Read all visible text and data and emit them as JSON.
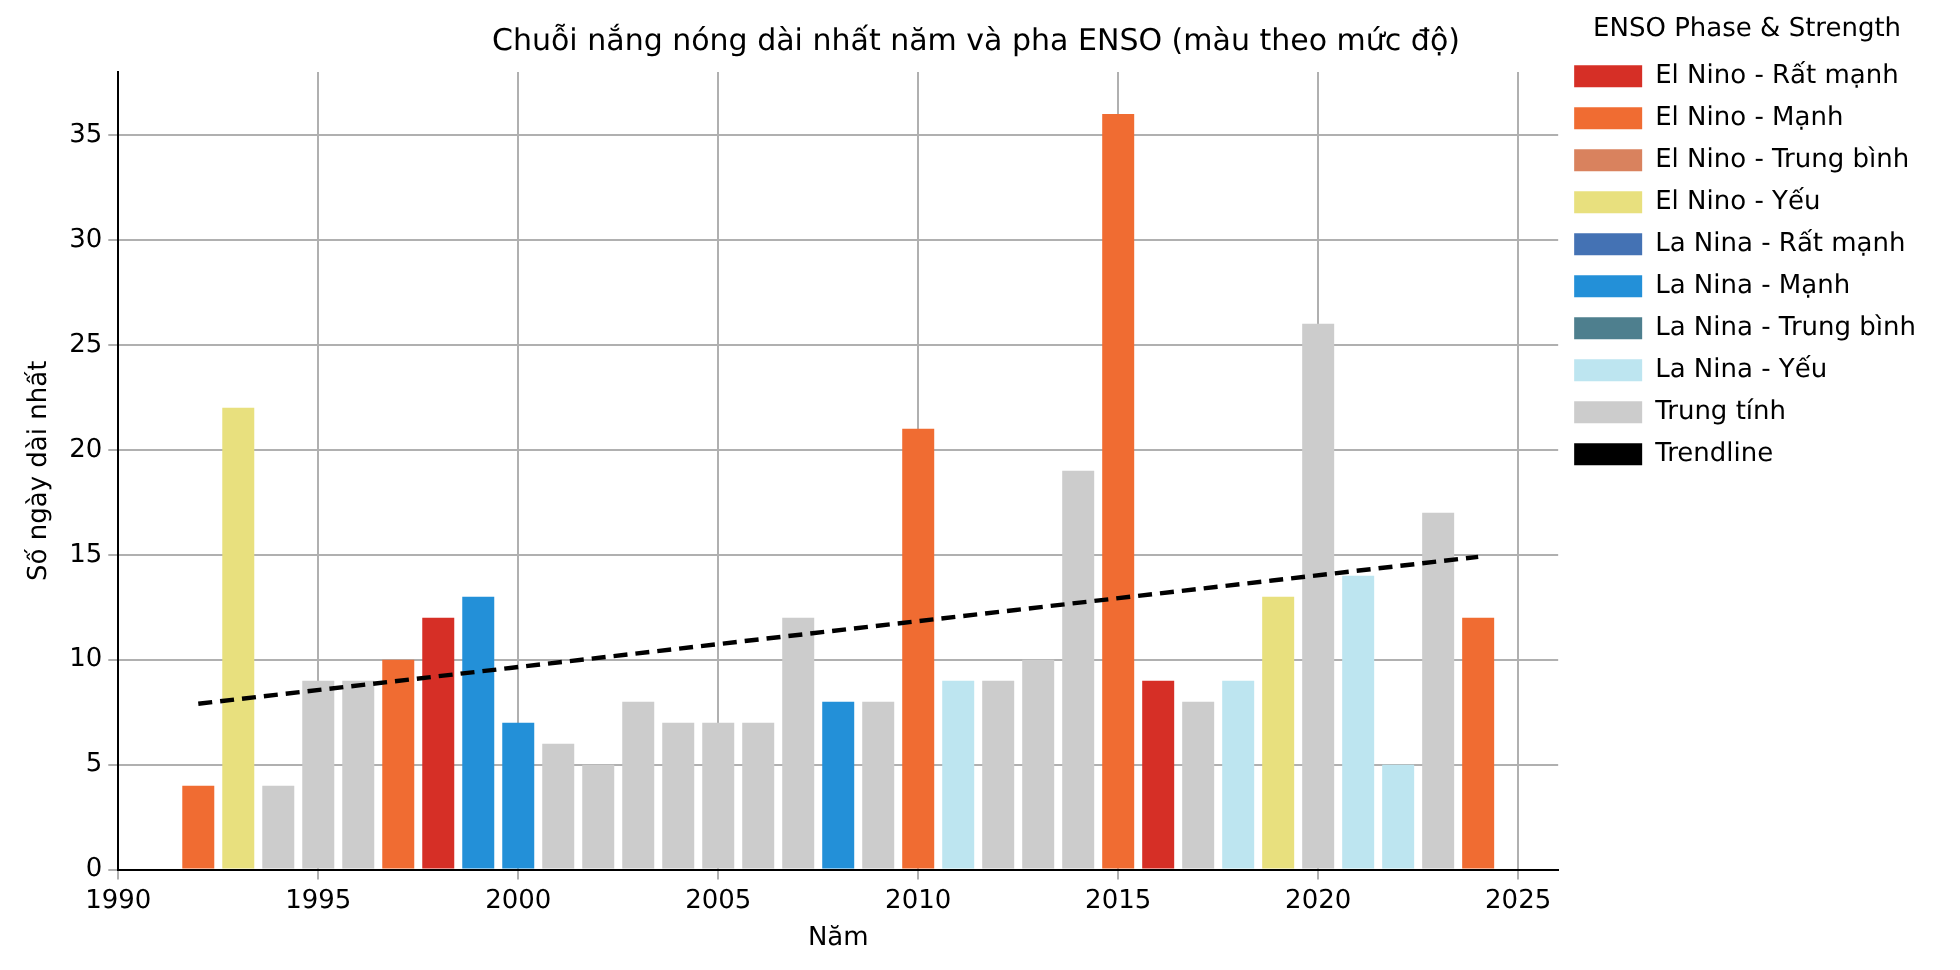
{
  "chart_data": {
    "type": "bar",
    "title": "Chuỗi nắng nóng dài nhất năm và pha ENSO (màu theo mức độ)",
    "xlabel": "Năm",
    "ylabel": "Số ngày dài nhất",
    "legend_title": "ENSO Phase & Strength",
    "legend": "right",
    "grid": true,
    "xlim": [
      1990,
      2026
    ],
    "xticks": [
      1990,
      1995,
      2000,
      2005,
      2010,
      2015,
      2020,
      2025
    ],
    "ylim": [
      0,
      38
    ],
    "yticks": [
      0,
      5,
      10,
      15,
      20,
      25,
      30,
      35
    ],
    "series": [
      {
        "name": "El Nino - Rất mạnh",
        "color": "#d62f26",
        "x": [
          1998,
          2016
        ],
        "values": [
          12,
          9
        ]
      },
      {
        "name": "El Nino - Mạnh",
        "color": "#f06c32",
        "x": [
          1992,
          1997,
          2010,
          2015,
          2024
        ],
        "values": [
          4,
          10,
          21,
          36,
          12
        ]
      },
      {
        "name": "El Nino - Trung bình",
        "color": "#d9825e"
      },
      {
        "name": "El Nino - Yếu",
        "color": "#e8e07e",
        "x": [
          1993,
          2019
        ],
        "values": [
          22,
          13
        ]
      },
      {
        "name": "La Nina - Rất mạnh",
        "color": "#4472b4"
      },
      {
        "name": "La Nina - Mạnh",
        "color": "#2390d8",
        "x": [
          1999,
          2000,
          2008
        ],
        "values": [
          13,
          7,
          8
        ]
      },
      {
        "name": "La Nina - Trung bình",
        "color": "#4e7f8e"
      },
      {
        "name": "La Nina - Yếu",
        "color": "#bde5f0",
        "x": [
          2011,
          2018,
          2021,
          2022
        ],
        "values": [
          9,
          9,
          14,
          5
        ]
      },
      {
        "name": "Trung tính",
        "color": "#cccccc",
        "x": [
          1994,
          1995,
          1996,
          2001,
          2002,
          2003,
          2004,
          2005,
          2006,
          2007,
          2009,
          2012,
          2013,
          2014,
          2017,
          2020,
          2023
        ],
        "values": [
          4,
          9,
          9,
          6,
          5,
          8,
          7,
          7,
          7,
          12,
          8,
          9,
          10,
          19,
          8,
          26,
          17
        ]
      },
      {
        "name": "Trendline",
        "type": "line",
        "color": "#000000",
        "line_style": "dashed",
        "marker": "none",
        "x": [
          1992,
          2024
        ],
        "values": [
          7.9,
          14.9
        ]
      }
    ]
  }
}
